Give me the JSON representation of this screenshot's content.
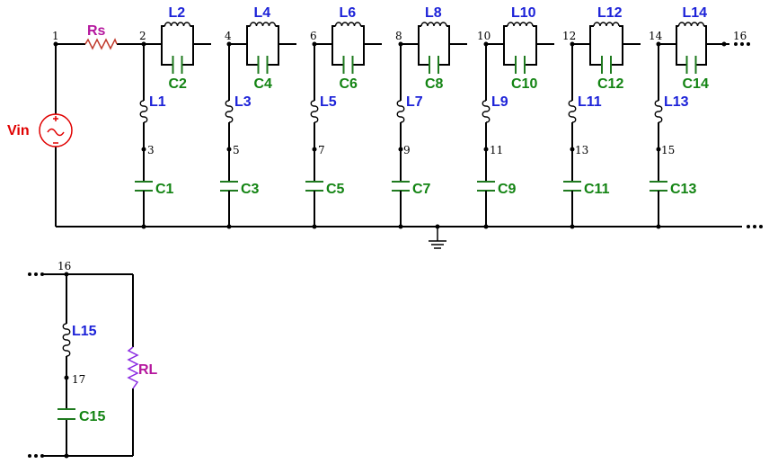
{
  "colors": {
    "inductor_label": "#1c22d8",
    "capacitor": "#138413",
    "resistor_label": "#b5179e",
    "source": "#e00000",
    "wire": "#000000"
  },
  "source": {
    "label": "Vin"
  },
  "series_resistor": {
    "label": "Rs"
  },
  "load_resistor": {
    "label": "RL"
  },
  "nodes": {
    "n1": "1",
    "n2": "2",
    "n3": "3",
    "n4": "4",
    "n5": "5",
    "n6": "6",
    "n7": "7",
    "n8": "8",
    "n9": "9",
    "n10": "10",
    "n11": "11",
    "n12": "12",
    "n13": "13",
    "n14": "14",
    "n15": "15",
    "n16": "16",
    "n16b": "16",
    "n17": "17"
  },
  "tanks": [
    {
      "inductor": "L2",
      "capacitor": "C2"
    },
    {
      "inductor": "L4",
      "capacitor": "C4"
    },
    {
      "inductor": "L6",
      "capacitor": "C6"
    },
    {
      "inductor": "L8",
      "capacitor": "C8"
    },
    {
      "inductor": "L10",
      "capacitor": "C10"
    },
    {
      "inductor": "L12",
      "capacitor": "C12"
    },
    {
      "inductor": "L14",
      "capacitor": "C14"
    }
  ],
  "shunts": [
    {
      "inductor": "L1",
      "capacitor": "C1"
    },
    {
      "inductor": "L3",
      "capacitor": "C3"
    },
    {
      "inductor": "L5",
      "capacitor": "C5"
    },
    {
      "inductor": "L7",
      "capacitor": "C7"
    },
    {
      "inductor": "L9",
      "capacitor": "C9"
    },
    {
      "inductor": "L11",
      "capacitor": "C11"
    },
    {
      "inductor": "L13",
      "capacitor": "C13"
    }
  ],
  "output_shunt": {
    "inductor": "L15",
    "capacitor": "C15"
  }
}
